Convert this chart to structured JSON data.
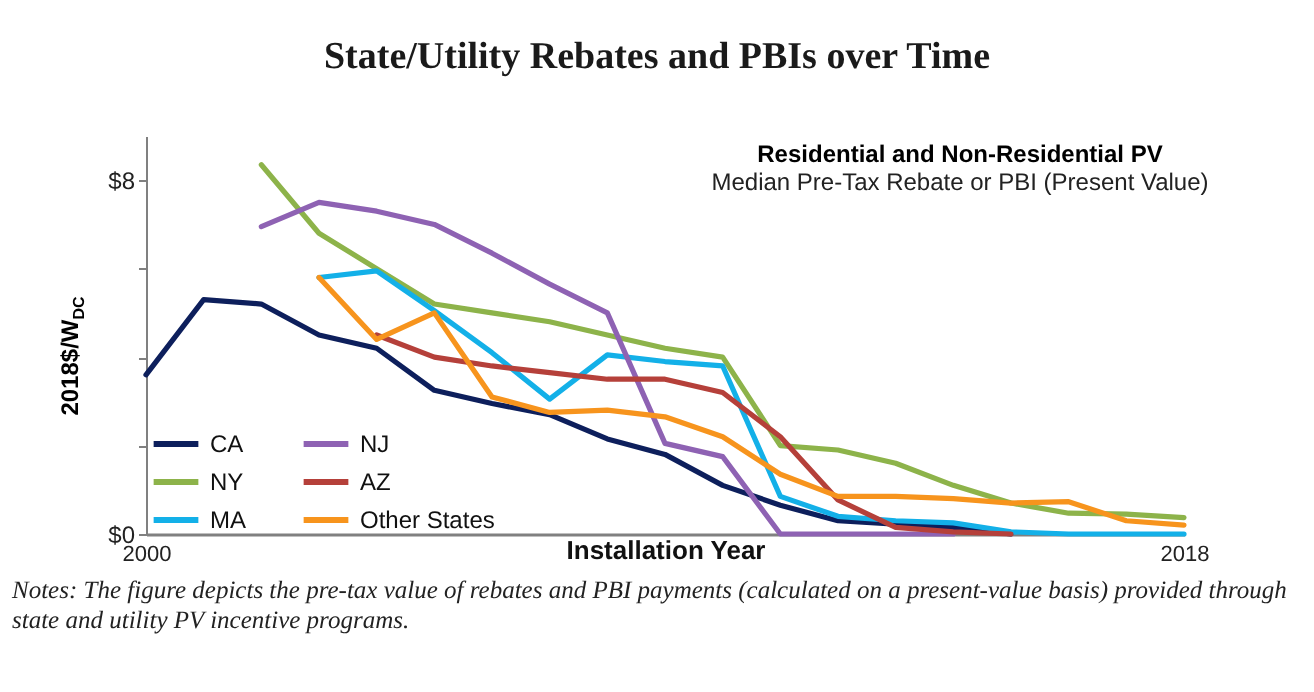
{
  "chart_data": {
    "type": "line",
    "title": "State/Utility Rebates and PBIs over Time",
    "subtitle": "Residential and Non-Residential PV",
    "annotations": [
      "Median Pre-Tax Rebate or PBI (Present Value)",
      "Notes: The figure depicts the pre-tax value of rebates and PBI payments (calculated on a present-value basis) provided through state and utility PV incentive programs."
    ],
    "xlabel": "Installation Year",
    "ylabel": "2018$/W$_{DC}$",
    "xlim": [
      2000,
      2018
    ],
    "xticks": [
      2000,
      2018
    ],
    "ylim": [
      0,
      9
    ],
    "yticks": [
      {
        "value": 0,
        "label": "$0"
      },
      {
        "value": 2,
        "label": null
      },
      {
        "value": 4,
        "label": null
      },
      {
        "value": 6,
        "label": null
      },
      {
        "value": 8,
        "label": "$8"
      }
    ],
    "grid": false,
    "legend": "bottom left",
    "marker": "none",
    "series": [
      {
        "name": "CA",
        "color": "#0d1f5c",
        "x": [
          2000,
          2001,
          2002,
          2003,
          2004,
          2005,
          2006,
          2007,
          2008,
          2009,
          2010,
          2011,
          2012,
          2013,
          2014,
          2015
        ],
        "values": [
          3.6,
          5.3,
          5.2,
          4.5,
          4.2,
          3.25,
          2.95,
          2.7,
          2.15,
          1.8,
          1.1,
          0.65,
          0.3,
          0.22,
          0.15,
          0
        ]
      },
      {
        "name": "NY",
        "color": "#8db34a",
        "x": [
          2002,
          2003,
          2004,
          2005,
          2006,
          2007,
          2008,
          2009,
          2010,
          2011,
          2012,
          2013,
          2014,
          2015,
          2016,
          2017,
          2018
        ],
        "values": [
          8.35,
          6.8,
          6.0,
          5.2,
          5.0,
          4.8,
          4.5,
          4.2,
          4.0,
          2.0,
          1.9,
          1.6,
          1.1,
          0.7,
          0.47,
          0.45,
          0.37
        ]
      },
      {
        "name": "MA",
        "color": "#13b0e8",
        "x": [
          2003,
          2004,
          2005,
          2006,
          2007,
          2008,
          2009,
          2010,
          2011,
          2012,
          2013,
          2014,
          2015,
          2016,
          2017,
          2018
        ],
        "values": [
          5.8,
          5.95,
          5.05,
          4.1,
          3.05,
          4.05,
          3.9,
          3.8,
          0.85,
          0.4,
          0.3,
          0.25,
          0.05,
          0,
          0,
          0
        ]
      },
      {
        "name": "NJ",
        "color": "#8e62b3",
        "x": [
          2002,
          2003,
          2004,
          2005,
          2006,
          2007,
          2008,
          2009,
          2010,
          2011,
          2012,
          2013,
          2014
        ],
        "values": [
          6.95,
          7.5,
          7.3,
          7.0,
          6.35,
          5.65,
          5.0,
          2.05,
          1.75,
          0,
          0,
          0,
          0
        ]
      },
      {
        "name": "AZ",
        "color": "#b5403a",
        "x": [
          2004,
          2005,
          2006,
          2007,
          2008,
          2009,
          2010,
          2011,
          2012,
          2013,
          2014,
          2015
        ],
        "values": [
          4.5,
          4.0,
          3.8,
          3.65,
          3.5,
          3.5,
          3.2,
          2.2,
          0.77,
          0.15,
          0.05,
          0
        ]
      },
      {
        "name": "Other States",
        "color": "#f7941d",
        "x": [
          2003,
          2004,
          2005,
          2006,
          2007,
          2008,
          2009,
          2010,
          2011,
          2012,
          2013,
          2014,
          2015,
          2016,
          2017,
          2018
        ],
        "values": [
          5.8,
          4.4,
          5.0,
          3.1,
          2.75,
          2.8,
          2.65,
          2.2,
          1.35,
          0.85,
          0.85,
          0.8,
          0.7,
          0.73,
          0.3,
          0.2
        ]
      }
    ]
  }
}
